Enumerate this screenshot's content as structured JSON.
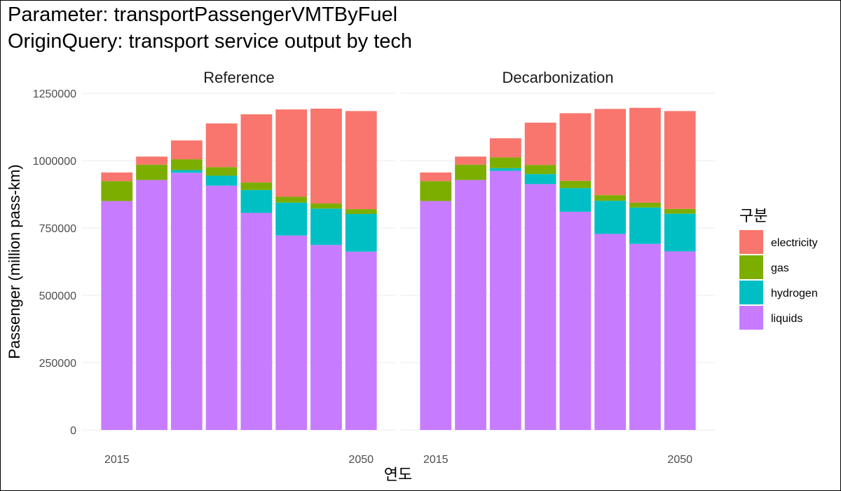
{
  "title_lines": [
    "Parameter: transportPassengerVMTByFuel",
    "OriginQuery: transport service output by tech"
  ],
  "chart_data": {
    "type": "bar",
    "stacked": true,
    "xlabel": "연도",
    "ylabel": "Passenger (million pass-km)",
    "ylim": [
      0,
      1250000
    ],
    "yticks": [
      0,
      250000,
      500000,
      750000,
      1000000,
      1250000
    ],
    "ytick_labels": [
      "0",
      "250000",
      "500000",
      "750000",
      "1000000",
      "1250000"
    ],
    "x": [
      2015,
      2020,
      2025,
      2030,
      2035,
      2040,
      2045,
      2050
    ],
    "xlim": [
      2010,
      2055
    ],
    "xticks": [
      2015,
      2050
    ],
    "xtick_labels": [
      "2015",
      "2050"
    ],
    "grid": true,
    "legend": {
      "title": "구분",
      "position": "right",
      "entries": [
        "electricity",
        "gas",
        "hydrogen",
        "liquids"
      ]
    },
    "colors": {
      "electricity": "#F8766D",
      "gas": "#7CAE00",
      "hydrogen": "#00BFC4",
      "liquids": "#C77CFF"
    },
    "panels": [
      {
        "name": "Reference",
        "series": [
          {
            "name": "liquids",
            "values": [
              850000,
              928000,
              955000,
              907000,
              806000,
              722000,
              687000,
              662000
            ]
          },
          {
            "name": "hydrogen",
            "values": [
              0,
              0,
              10000,
              37000,
              85000,
              122000,
              135000,
              140000
            ]
          },
          {
            "name": "gas",
            "values": [
              74000,
              57000,
              40000,
              32000,
              28000,
              22000,
              19000,
              18000
            ]
          },
          {
            "name": "electricity",
            "values": [
              32000,
              30000,
              70000,
              162000,
              253000,
              324000,
              352000,
              364000
            ]
          }
        ]
      },
      {
        "name": "Decarbonization",
        "series": [
          {
            "name": "liquids",
            "values": [
              850000,
              928000,
              962000,
              913000,
              810000,
              728000,
              691000,
              663000
            ]
          },
          {
            "name": "hydrogen",
            "values": [
              0,
              0,
              10000,
              37000,
              88000,
              123000,
              135000,
              140000
            ]
          },
          {
            "name": "gas",
            "values": [
              74000,
              57000,
              40000,
              34000,
              27000,
              21000,
              18000,
              18000
            ]
          },
          {
            "name": "electricity",
            "values": [
              32000,
              30000,
              71000,
              157000,
              251000,
              320000,
              352000,
              363000
            ]
          }
        ]
      }
    ]
  }
}
